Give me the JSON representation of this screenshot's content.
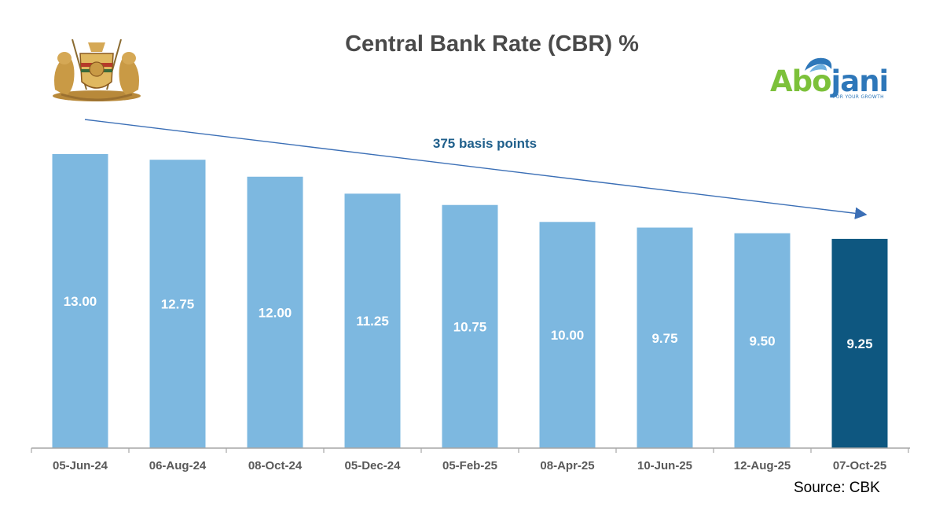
{
  "chart_data": {
    "type": "bar",
    "title": "Central Bank Rate (CBR) %",
    "categories": [
      "05-Jun-24",
      "06-Aug-24",
      "08-Oct-24",
      "05-Dec-24",
      "05-Feb-25",
      "08-Apr-25",
      "10-Jun-25",
      "12-Aug-25",
      "07-Oct-25"
    ],
    "values": [
      13.0,
      12.75,
      12.0,
      11.25,
      10.75,
      10.0,
      9.75,
      9.5,
      9.25
    ],
    "value_labels": [
      "13.00",
      "12.75",
      "12.00",
      "11.25",
      "10.75",
      "10.00",
      "9.75",
      "9.50",
      "9.25"
    ],
    "highlighted_index": 8,
    "xlabel": "",
    "ylabel": "",
    "y_axis_visible": false,
    "grid": false,
    "annotation": {
      "text": "375 basis points",
      "type": "arrow",
      "from_category": "05-Jun-24",
      "to_category": "07-Oct-25"
    },
    "colors": {
      "bar": "#7db8e0",
      "highlight_bar": "#0e5780",
      "annotation_text": "#1f5f8b",
      "arrow": "#3b6fb6",
      "value_label": "#ffffff",
      "axis": "#a6a6a6",
      "tick_label": "#595959"
    }
  },
  "source": "Source: CBK",
  "logos": {
    "left": {
      "icon": "kenya-coat-of-arms-icon"
    },
    "right": {
      "name_part1": "Abo",
      "name_part2": "jani",
      "tagline": "FOR YOUR GROWTH",
      "icon": "abojani-logo-icon"
    }
  }
}
